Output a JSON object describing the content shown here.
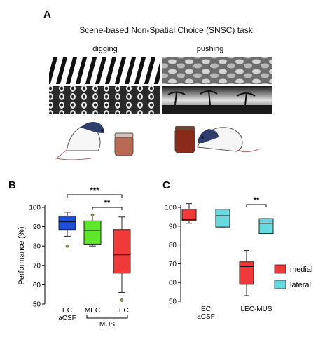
{
  "panel_a": {
    "letter": "A",
    "title": "Scene-based Non-Spatial Choice (SNSC) task",
    "conditions": [
      "digging",
      "pushing"
    ]
  },
  "panel_b": {
    "letter": "B"
  },
  "panel_c": {
    "letter": "C"
  },
  "colors": {
    "blue": "#1f4fd6",
    "green": "#5ee62b",
    "red": "#f03a3a",
    "cyan": "#67d9df",
    "olive": "#a0a040"
  },
  "chart_data": [
    {
      "type": "box",
      "panel": "B",
      "ylabel": "Performance (%)",
      "ylim": [
        50,
        100
      ],
      "yticks": [
        50,
        60,
        70,
        80,
        90,
        100
      ],
      "xlabels": [
        [
          "EC",
          "aCSF"
        ],
        [
          "MEC"
        ],
        [
          "LEC"
        ]
      ],
      "group_label": "MUS",
      "boxes": [
        {
          "category": "EC aCSF",
          "color": "#1f4fd6",
          "whisker_low": 85,
          "q1": 88.5,
          "median": 92.5,
          "q3": 95.5,
          "whisker_high": 97.5,
          "outliers": [
            80
          ]
        },
        {
          "category": "MEC",
          "color": "#5ee62b",
          "whisker_low": 80,
          "q1": 81,
          "median": 88,
          "q3": 93,
          "whisker_high": 95.5,
          "outliers": [
            96
          ]
        },
        {
          "category": "LEC",
          "color": "#f03a3a",
          "whisker_low": 56,
          "q1": 66,
          "median": 75.5,
          "q3": 88.5,
          "whisker_high": 95,
          "outliers": [
            52
          ]
        }
      ],
      "significance": [
        {
          "from": 0,
          "to": 2,
          "label": "***"
        },
        {
          "from": 1,
          "to": 2,
          "label": "**"
        }
      ]
    },
    {
      "type": "box",
      "panel": "C",
      "ylim": [
        50,
        100
      ],
      "yticks": [
        50,
        60,
        70,
        80,
        90,
        100
      ],
      "xlabels": [
        [
          "EC",
          "aCSF"
        ],
        [
          "LEC-MUS"
        ]
      ],
      "legend": [
        "medial",
        "lateral"
      ],
      "legend_position": "right",
      "boxes": [
        {
          "category": "EC aCSF",
          "series": "medial",
          "color": "#f03a3a",
          "whisker_low": 91.5,
          "q1": 93,
          "median": 93.5,
          "q3": 99,
          "whisker_high": 102
        },
        {
          "category": "EC aCSF",
          "series": "lateral",
          "color": "#67d9df",
          "whisker_low": 89.5,
          "q1": 89.5,
          "median": 95.5,
          "q3": 99,
          "whisker_high": 99
        },
        {
          "category": "LEC-MUS",
          "series": "medial",
          "color": "#f03a3a",
          "whisker_low": 53,
          "q1": 59,
          "median": 68.5,
          "q3": 71,
          "whisker_high": 77
        },
        {
          "category": "LEC-MUS",
          "series": "lateral",
          "color": "#67d9df",
          "whisker_low": 86,
          "q1": 86,
          "median": 91.5,
          "q3": 94,
          "whisker_high": 94
        }
      ],
      "significance": [
        {
          "category": "LEC-MUS",
          "label": "**"
        }
      ]
    }
  ]
}
